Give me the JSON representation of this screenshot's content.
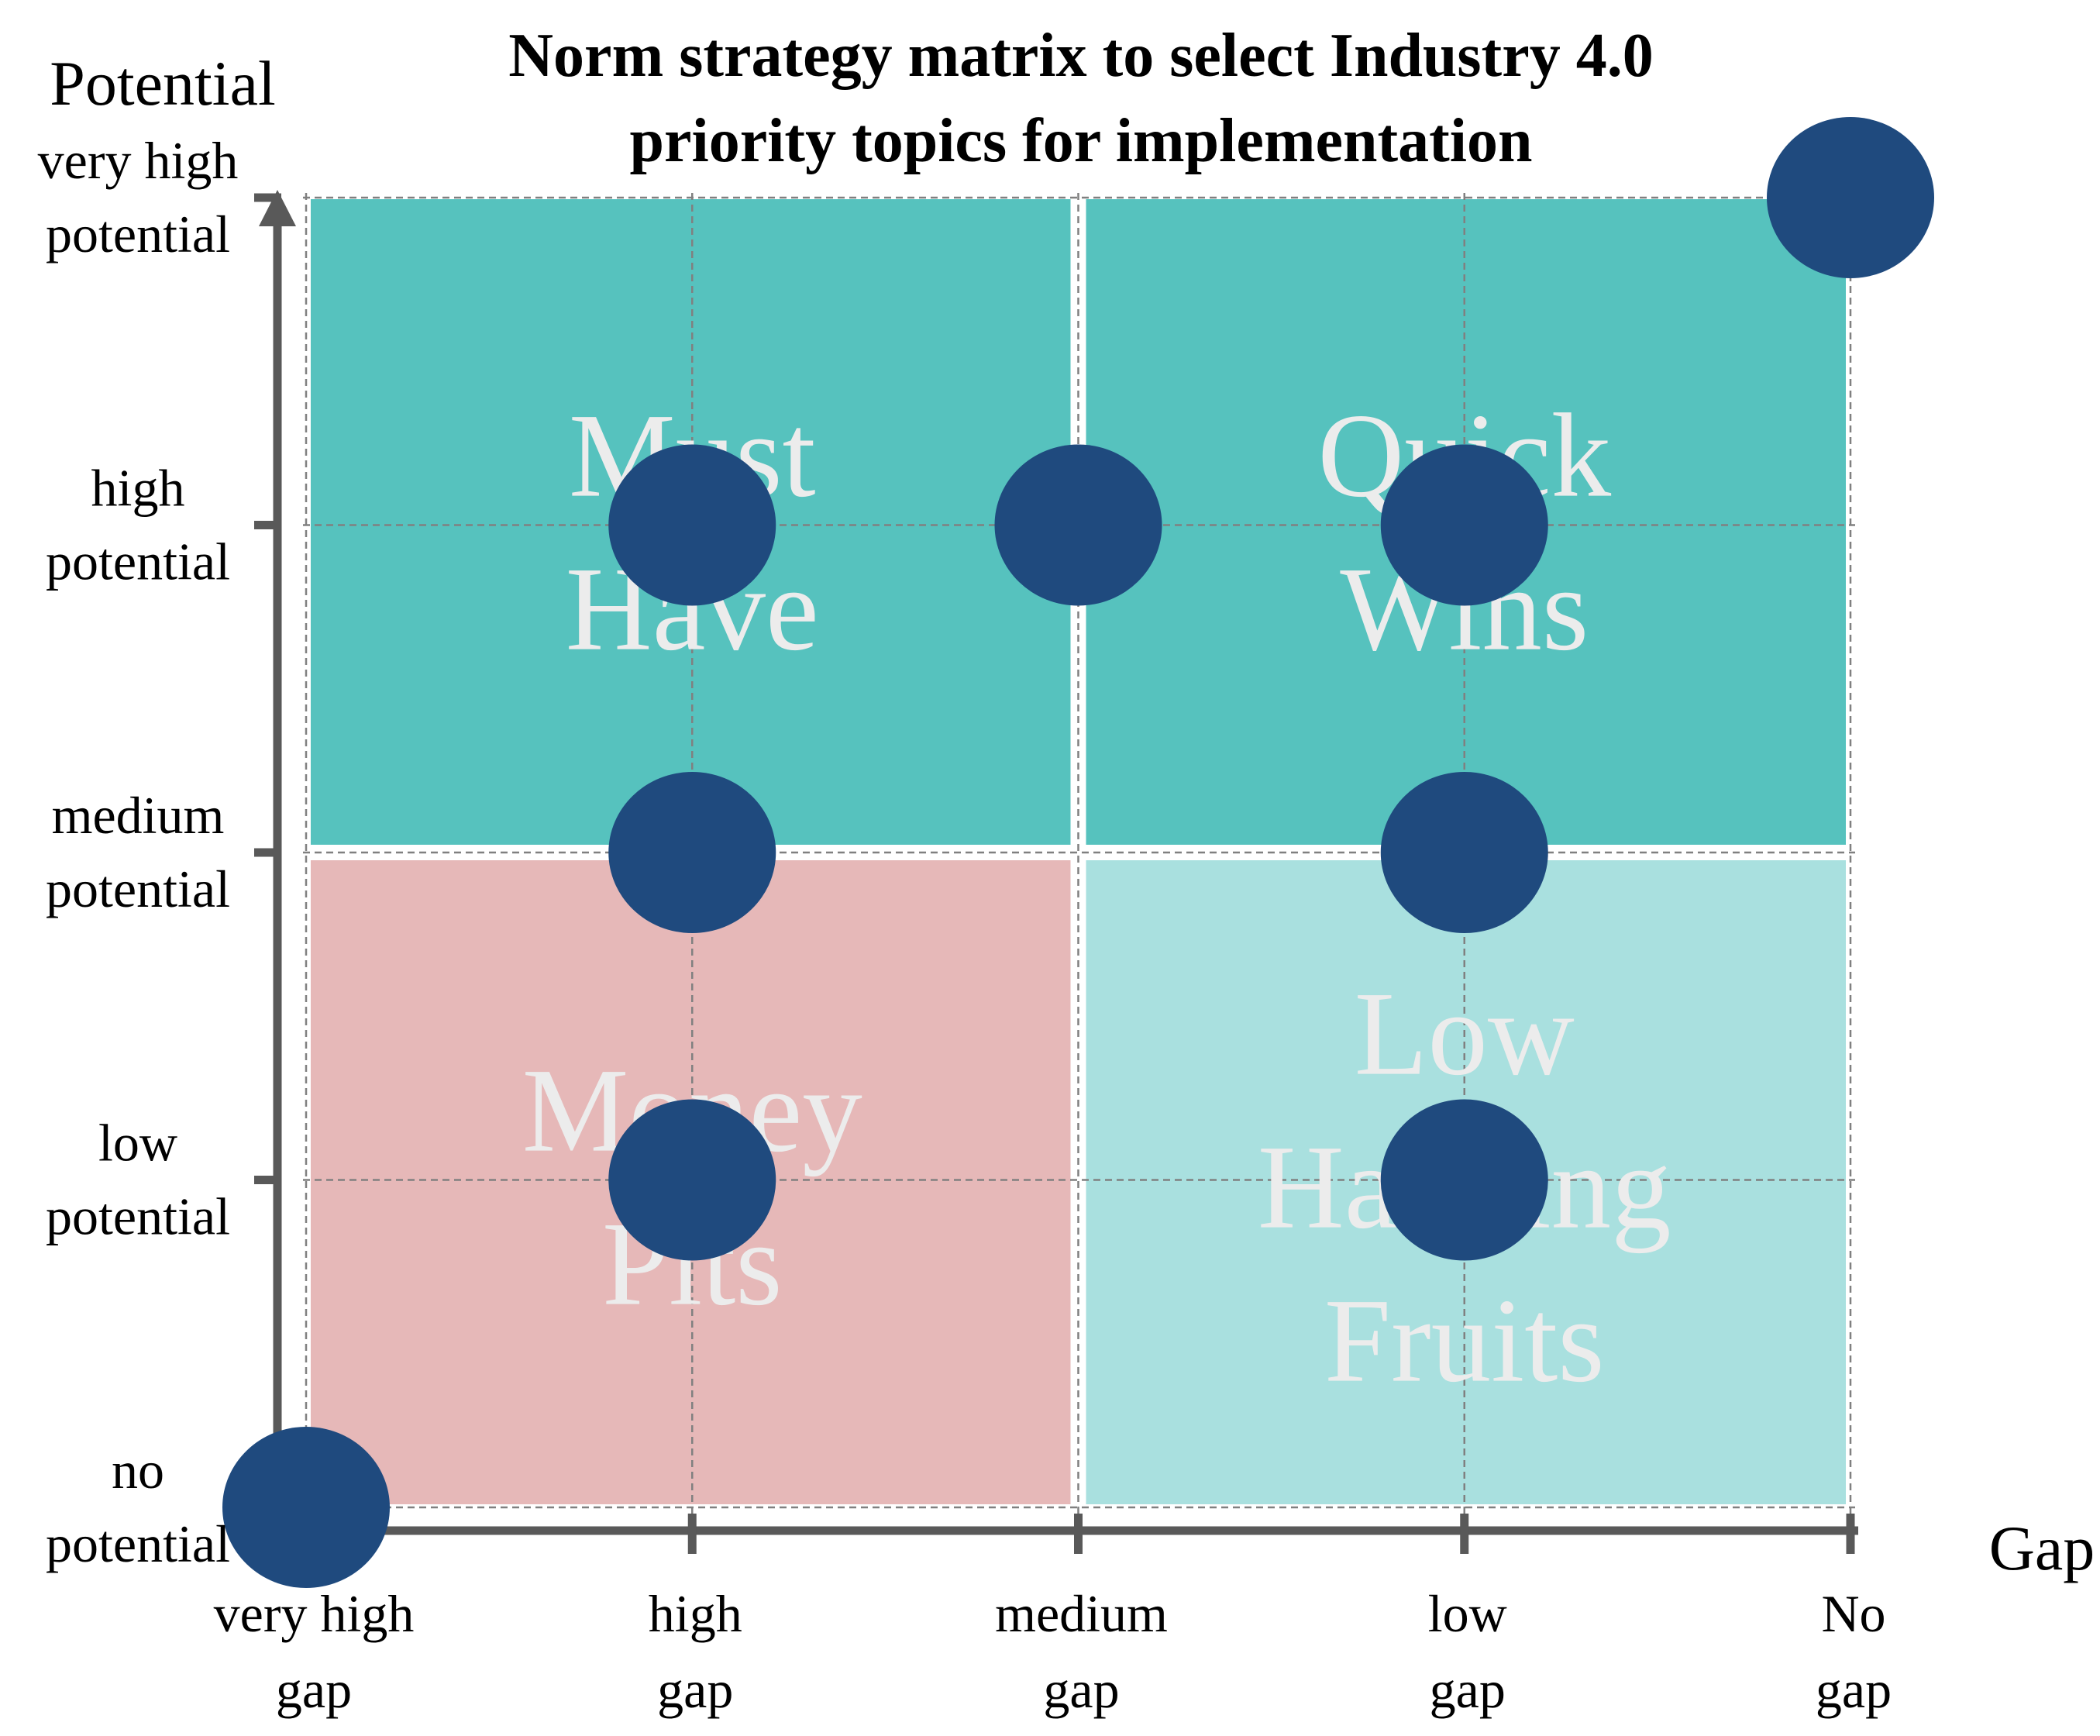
{
  "chart_data": {
    "type": "scatter",
    "title_lines": [
      "Norm strategy matrix to select Industry 4.0",
      "priority topics for implementation"
    ],
    "ylabel": "Potential",
    "xlabel": "Gap",
    "x_ticks": [
      [
        "very high",
        "gap"
      ],
      [
        "high",
        "gap"
      ],
      [
        "medium",
        "gap"
      ],
      [
        "low",
        "gap"
      ],
      [
        "No",
        "gap"
      ]
    ],
    "y_ticks": [
      [
        "no",
        "potential"
      ],
      [
        "low",
        "potential"
      ],
      [
        "medium",
        "potential"
      ],
      [
        "high",
        "potential"
      ],
      [
        "very high",
        "potential"
      ]
    ],
    "xlim": [
      0,
      4
    ],
    "ylim": [
      0,
      4
    ],
    "quadrants": [
      {
        "name": "Must Have",
        "lines": [
          "Must",
          "Have"
        ],
        "x_range": [
          0,
          2
        ],
        "y_range": [
          2,
          4
        ],
        "color": "#56c2be"
      },
      {
        "name": "Quick Wins",
        "lines": [
          "Quick",
          "Wins"
        ],
        "x_range": [
          2,
          4
        ],
        "y_range": [
          2,
          4
        ],
        "color": "#56c2be"
      },
      {
        "name": "Money Pits",
        "lines": [
          "Money",
          "Pits"
        ],
        "x_range": [
          0,
          2
        ],
        "y_range": [
          0,
          2
        ],
        "color": "#e6b8b8"
      },
      {
        "name": "Low Hanging Fruits",
        "lines": [
          "Low",
          "Hanging",
          "Fruits"
        ],
        "x_range": [
          2,
          4
        ],
        "y_range": [
          0,
          2
        ],
        "color": "#a9e0df"
      }
    ],
    "points": [
      {
        "x": 0,
        "y": 0
      },
      {
        "x": 1,
        "y": 3
      },
      {
        "x": 2,
        "y": 3
      },
      {
        "x": 3,
        "y": 3
      },
      {
        "x": 1,
        "y": 2
      },
      {
        "x": 3,
        "y": 2
      },
      {
        "x": 1,
        "y": 1
      },
      {
        "x": 3,
        "y": 1
      },
      {
        "x": 4,
        "y": 4
      }
    ],
    "grid": true,
    "colors": {
      "point": "#1f4a7e",
      "axis": "#595959",
      "grid": "#808080",
      "quadrant_text": "#ececec",
      "text": "#000000"
    }
  }
}
